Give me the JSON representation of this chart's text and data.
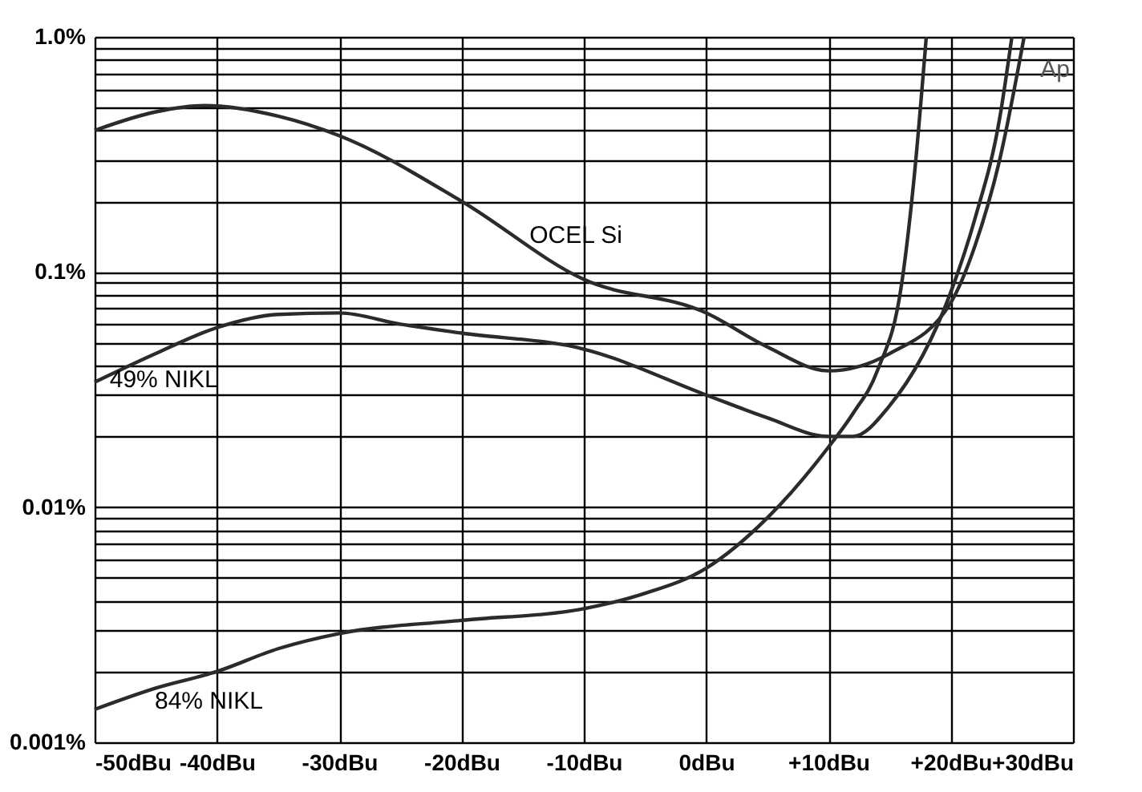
{
  "chart_data": {
    "type": "line",
    "xlim": [
      -50,
      30
    ],
    "xticks": [
      {
        "value": -50,
        "label": "-50dBu"
      },
      {
        "value": -40,
        "label": "-40dBu"
      },
      {
        "value": -30,
        "label": "-30dBu"
      },
      {
        "value": -20,
        "label": "-20dBu"
      },
      {
        "value": -10,
        "label": "-10dBu"
      },
      {
        "value": 0,
        "label": "0dBu"
      },
      {
        "value": 10,
        "label": "+10dBu"
      },
      {
        "value": 20,
        "label": "+20dBu"
      },
      {
        "value": 30,
        "label": "+30dBu"
      }
    ],
    "ylim": [
      0.001,
      1
    ],
    "yticks": [
      {
        "value": 0.001,
        "label": "0.001%"
      },
      {
        "value": 0.002,
        "label": null
      },
      {
        "value": 0.003,
        "label": null
      },
      {
        "value": 0.004,
        "label": null
      },
      {
        "value": 0.005,
        "label": null
      },
      {
        "value": 0.006,
        "label": null
      },
      {
        "value": 0.007,
        "label": null
      },
      {
        "value": 0.008,
        "label": null
      },
      {
        "value": 0.009,
        "label": null
      },
      {
        "value": 0.01,
        "label": "0.01%"
      },
      {
        "value": 0.02,
        "label": null
      },
      {
        "value": 0.03,
        "label": null
      },
      {
        "value": 0.04,
        "label": null
      },
      {
        "value": 0.05,
        "label": null
      },
      {
        "value": 0.06,
        "label": null
      },
      {
        "value": 0.07,
        "label": null
      },
      {
        "value": 0.08,
        "label": null
      },
      {
        "value": 0.09,
        "label": null
      },
      {
        "value": 0.1,
        "label": "0.1%"
      },
      {
        "value": 0.2,
        "label": null
      },
      {
        "value": 0.3,
        "label": null
      },
      {
        "value": 0.4,
        "label": null
      },
      {
        "value": 0.5,
        "label": null
      },
      {
        "value": 0.6,
        "label": null
      },
      {
        "value": 0.7,
        "label": null
      },
      {
        "value": 0.8,
        "label": null
      },
      {
        "value": 0.9,
        "label": null
      },
      {
        "value": 1,
        "label": "1.0%"
      }
    ],
    "log": "y",
    "grid": true,
    "legend": false,
    "marker": "none",
    "line_style": "solid",
    "annotations": [
      "Ap"
    ],
    "series": [
      {
        "name": "OCEL Si",
        "color": "#2b2b2b",
        "x": [
          -50,
          -45,
          -41,
          -35,
          -30,
          -20,
          -10,
          0,
          5,
          10,
          15,
          20,
          22,
          24,
          26
        ],
        "values": [
          0.4,
          0.48,
          0.51,
          0.46,
          0.38,
          0.2,
          0.093,
          0.067,
          0.048,
          0.038,
          0.045,
          0.074,
          0.13,
          0.3,
          1.0
        ]
      },
      {
        "name": "49% NIKL",
        "color": "#2b2b2b",
        "x": [
          -50,
          -45,
          -40,
          -35,
          -30,
          -25,
          -20,
          -10,
          0,
          5,
          10,
          12,
          15,
          20,
          22,
          24,
          25
        ],
        "values": [
          0.034,
          0.045,
          0.058,
          0.066,
          0.067,
          0.06,
          0.055,
          0.047,
          0.03,
          0.024,
          0.02,
          0.02,
          0.027,
          0.082,
          0.17,
          0.45,
          1.0
        ]
      },
      {
        "name": "84% NIKL",
        "color": "#2b2b2b",
        "x": [
          -50,
          -45,
          -40,
          -35,
          -30,
          -20,
          -10,
          -5,
          0,
          5,
          10,
          12,
          14,
          16,
          17,
          18
        ],
        "values": [
          0.00138,
          0.0017,
          0.002,
          0.0025,
          0.0029,
          0.0033,
          0.0037,
          0.0043,
          0.0055,
          0.009,
          0.018,
          0.025,
          0.038,
          0.09,
          0.25,
          1.0
        ]
      }
    ]
  }
}
